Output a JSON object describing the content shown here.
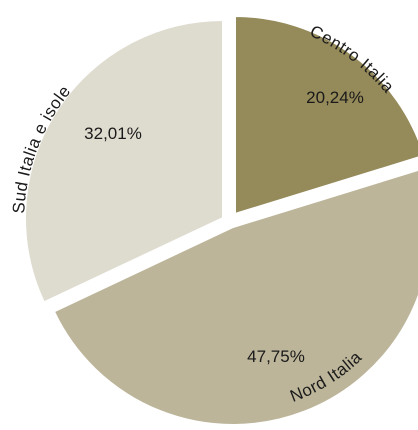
{
  "chart_data": {
    "type": "pie",
    "title": "",
    "slices": [
      {
        "label": "Centro Italia",
        "value": 20.24,
        "value_label": "20,24%",
        "color": "#958a5a"
      },
      {
        "label": "Nord Italia",
        "value": 47.75,
        "value_label": "47,75%",
        "color": "#bcb59a"
      },
      {
        "label": "Sud Italia e isole",
        "value": 32.01,
        "value_label": "32,01%",
        "color": "#dedbcf"
      }
    ],
    "start_angle_deg": 0,
    "direction": "clockwise",
    "exploded": true,
    "legend": "none"
  }
}
